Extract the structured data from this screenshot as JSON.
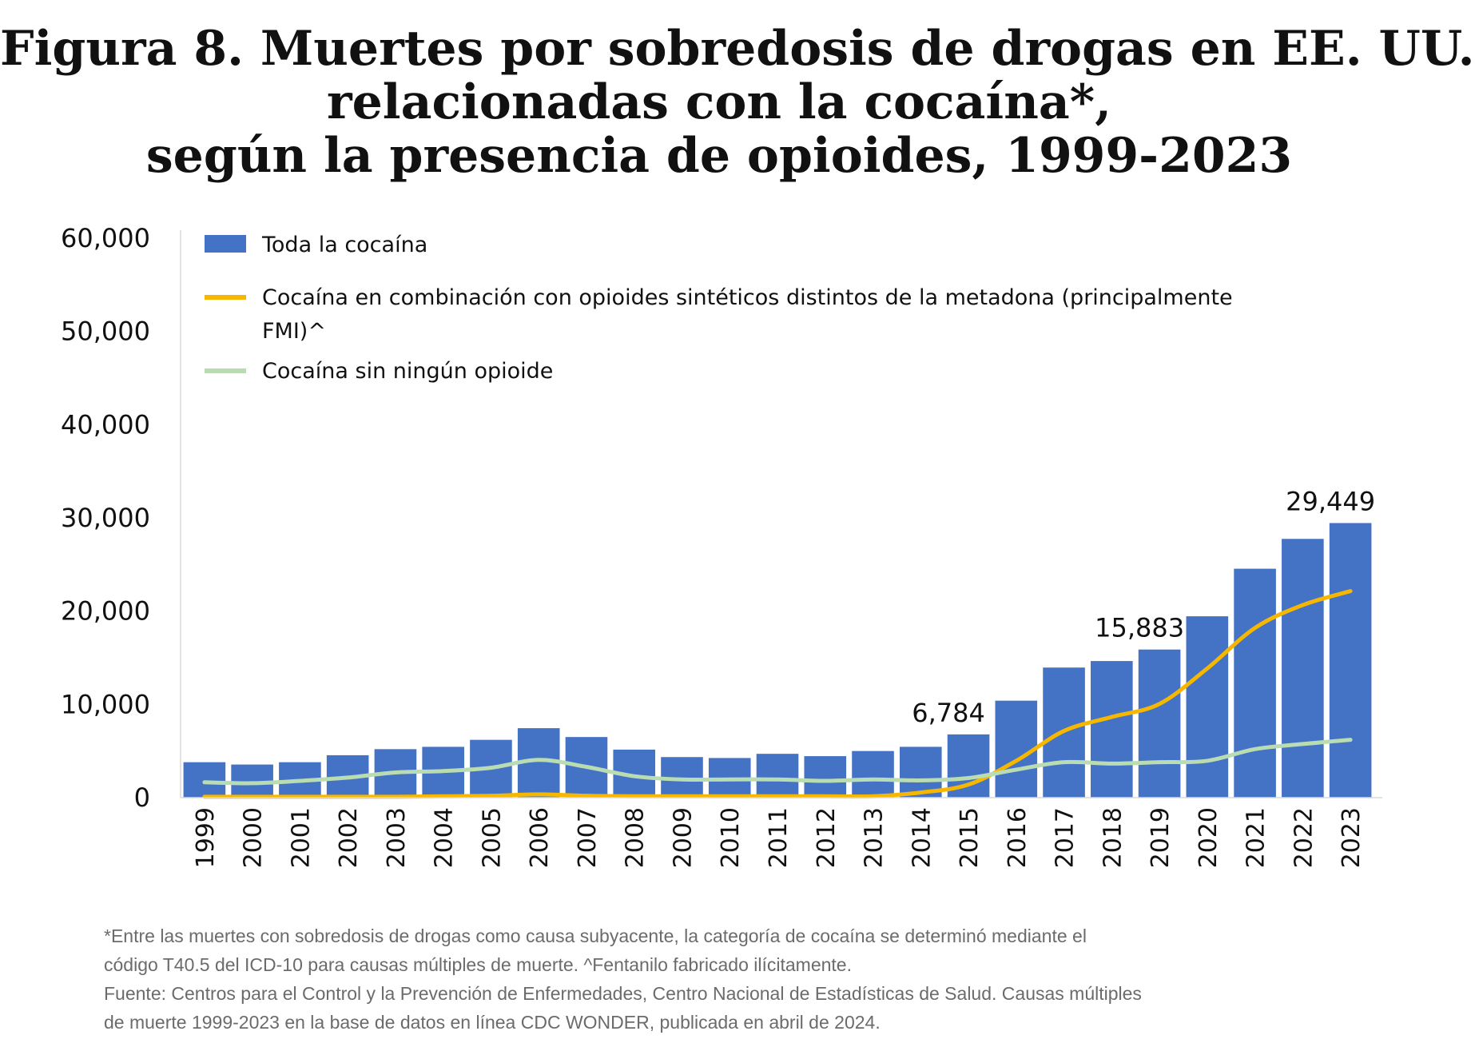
{
  "title": {
    "line1": "Figura 8. Muertes por sobredosis de drogas en EE. UU.",
    "line2": "relacionadas con la cocaína*,",
    "line3": "según la presencia de opioides, 1999-2023"
  },
  "chart_data": {
    "type": "bar",
    "categories": [
      "1999",
      "2000",
      "2001",
      "2002",
      "2003",
      "2004",
      "2005",
      "2006",
      "2007",
      "2008",
      "2009",
      "2010",
      "2011",
      "2012",
      "2013",
      "2014",
      "2015",
      "2016",
      "2017",
      "2018",
      "2019",
      "2020",
      "2021",
      "2022",
      "2023"
    ],
    "ylim": [
      0,
      60000
    ],
    "yticks": [
      0,
      10000,
      20000,
      30000,
      40000,
      50000,
      60000
    ],
    "ytick_labels": [
      "0",
      "10,000",
      "20,000",
      "30,000",
      "40,000",
      "50,000",
      "60,000"
    ],
    "grid": false,
    "legend_position": "top-left",
    "series": [
      {
        "name": "Toda la cocaína",
        "kind": "bar",
        "color": "#4472c4",
        "values": [
          3800,
          3550,
          3800,
          4550,
          5200,
          5450,
          6200,
          7450,
          6500,
          5150,
          4350,
          4250,
          4700,
          4450,
          5000,
          5450,
          6784,
          10400,
          13950,
          14650,
          15883,
          19450,
          24550,
          27750,
          29449
        ]
      },
      {
        "name": "Cocaína en combinación con opioides sintéticos distintos de la metadona (principalmente FMI)^",
        "kind": "line",
        "color": "#f5b700",
        "values": [
          100,
          100,
          100,
          100,
          100,
          150,
          200,
          350,
          200,
          150,
          150,
          150,
          150,
          150,
          150,
          550,
          1400,
          3950,
          7150,
          8650,
          10050,
          13850,
          18200,
          20650,
          22150
        ]
      },
      {
        "name": "Cocaína sin ningún opioide",
        "kind": "line",
        "color": "#b9dcb3",
        "values": [
          1650,
          1550,
          1800,
          2150,
          2700,
          2850,
          3200,
          4050,
          3300,
          2300,
          1950,
          1950,
          1950,
          1800,
          1950,
          1850,
          2100,
          3000,
          3800,
          3650,
          3800,
          3950,
          5200,
          5750,
          6200
        ]
      }
    ],
    "annotations": [
      {
        "category": "2015",
        "text": "6,784"
      },
      {
        "category": "2019",
        "text": "15,883"
      },
      {
        "category": "2023",
        "text": "29,449"
      }
    ]
  },
  "legend": {
    "item1": "Toda la cocaína",
    "item2_line1": "Cocaína en combinación con opioides sintéticos distintos de la metadona (principalmente",
    "item2_line2": "FMI)^",
    "item3": "Cocaína sin ningún opioide"
  },
  "footnote": {
    "line1": "*Entre las muertes con sobredosis de drogas como causa subyacente, la categoría de cocaína se determinó mediante el",
    "line2": "código T40.5 del ICD-10 para causas múltiples de muerte. ^Fentanilo fabricado ilícitamente.",
    "line3": "Fuente: Centros para el Control y la Prevención de Enfermedades, Centro Nacional de Estadísticas de Salud. Causas múltiples",
    "line4": "de muerte 1999-2023 en la base de datos en línea CDC WONDER, publicada en abril de 2024."
  }
}
